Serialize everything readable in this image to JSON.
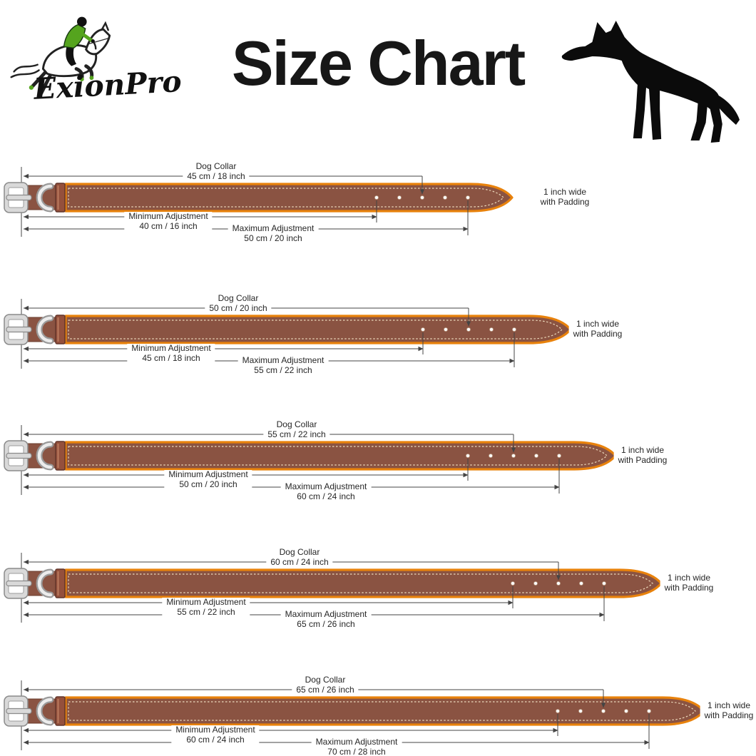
{
  "brand": {
    "name": "ExionPro"
  },
  "title": "Size Chart",
  "shared_labels": {
    "dog_collar": "Dog Collar",
    "minimum": "Minimum Adjustment",
    "maximum": "Maximum Adjustment",
    "width_note_line1": "1 inch wide",
    "width_note_line2": "with Padding"
  },
  "collars": [
    {
      "size": "45 cm / 18 inch",
      "minimum": "40 cm / 16 inch",
      "maximum": "50 cm / 20 inch"
    },
    {
      "size": "50 cm / 20 inch",
      "minimum": "45 cm / 18 inch",
      "maximum": "55 cm / 22 inch"
    },
    {
      "size": "55 cm / 22 inch",
      "minimum": "50 cm / 20 inch",
      "maximum": "60 cm / 24 inch"
    },
    {
      "size": "60 cm / 24 inch",
      "minimum": "55 cm / 22 inch",
      "maximum": "65 cm / 26 inch"
    },
    {
      "size": "65 cm / 26 inch",
      "minimum": "60 cm / 24 inch",
      "maximum": "70 cm / 28 inch"
    }
  ],
  "icons": {
    "logo": "horse-and-rider-logo",
    "header_art": "german-shepherd-silhouette"
  },
  "colors": {
    "strap_brown": "#8a5342",
    "strap_dark_edge": "#6b3d2e",
    "trim_orange": "#e8820c",
    "stitch_cream": "#ecd9bb",
    "metal_gray": "#d9d9d9",
    "metal_outline": "#8b8b8b",
    "keeper_brown": "#94503c",
    "keeper_outline": "#62352a",
    "dimension_line": "#444444",
    "text_ink": "#262626",
    "art_black": "#0b0b0b",
    "rider_green": "#55a41e",
    "hole_white": "#ffffff"
  }
}
